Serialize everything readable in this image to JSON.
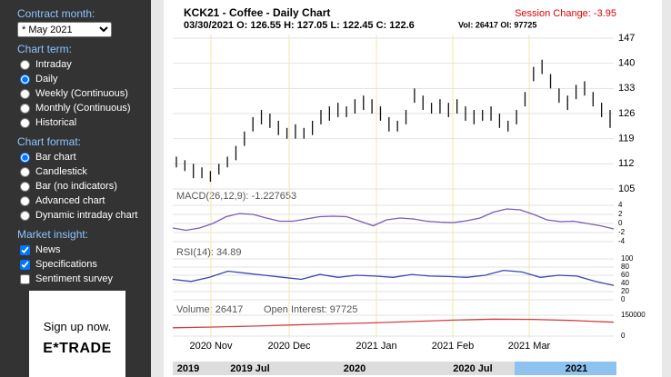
{
  "sidebar": {
    "contract_label": "Contract month:",
    "contract_value": "* May 2021",
    "term_label": "Chart term:",
    "terms": [
      {
        "label": "Intraday",
        "checked": false
      },
      {
        "label": "Daily",
        "checked": true
      },
      {
        "label": "Weekly (Continuous)",
        "checked": false
      },
      {
        "label": "Monthly (Continuous)",
        "checked": false
      },
      {
        "label": "Historical",
        "checked": false
      }
    ],
    "format_label": "Chart format:",
    "formats": [
      {
        "label": "Bar chart",
        "checked": true
      },
      {
        "label": "Candlestick",
        "checked": false
      },
      {
        "label": "Bar (no indicators)",
        "checked": false
      },
      {
        "label": "Advanced chart",
        "checked": false
      },
      {
        "label": "Dynamic intraday chart",
        "checked": false
      }
    ],
    "insight_label": "Market insight:",
    "insights": [
      {
        "label": "News",
        "checked": true
      },
      {
        "label": "Specifications",
        "checked": true
      },
      {
        "label": "Sentiment survey",
        "checked": false
      }
    ]
  },
  "ad": {
    "line1": "Sign up now.",
    "brand": "E*TRADE"
  },
  "chart_data": {
    "type": "ohlc",
    "title": "KCK21 - Coffee - Daily Chart",
    "session_change": "Session Change: -3.95",
    "quote": "03/30/2021 O: 126.55 H: 127.05 L: 122.45 C: 122.6",
    "quote_extra": "Vol: 26417 OI: 97725",
    "high": [
      114,
      113,
      112,
      111,
      110,
      112,
      114,
      117,
      121,
      125,
      127,
      126,
      124,
      122,
      123,
      122,
      124,
      127,
      128,
      129,
      128,
      130,
      131,
      130,
      128,
      125,
      124,
      127,
      133,
      131,
      129,
      130,
      129,
      130,
      128,
      127,
      127,
      128,
      126,
      124,
      127,
      132,
      139,
      141,
      137,
      133,
      131,
      134,
      135,
      132,
      129,
      127
    ],
    "low": [
      111,
      110,
      108,
      108,
      107,
      109,
      111,
      113,
      117,
      121,
      123,
      122,
      120,
      119,
      119,
      119,
      120,
      123,
      124,
      125,
      125,
      126,
      127,
      126,
      124,
      121,
      121,
      123,
      129,
      127,
      126,
      126,
      125,
      126,
      124,
      123,
      124,
      124,
      122,
      121,
      123,
      128,
      135,
      137,
      133,
      129,
      127,
      130,
      131,
      128,
      125,
      122
    ],
    "ylim": [
      105,
      147
    ],
    "yticks": [
      105,
      112,
      119,
      126,
      133,
      140,
      147
    ],
    "x_labels": [
      "2020 Nov",
      "2020 Dec",
      "2021 Jan",
      "2021 Feb",
      "2021 Mar"
    ],
    "macd": {
      "label": "MACD(26,12,9): -1.227653",
      "values": [
        -1,
        -1.5,
        -1,
        0,
        1.5,
        2.2,
        2,
        1.2,
        0.5,
        0.5,
        1,
        1.5,
        1.6,
        1.5,
        0.5,
        -0.5,
        0.8,
        1.2,
        1,
        0.5,
        0.3,
        0.2,
        0.6,
        1.2,
        2.5,
        3.2,
        3,
        2,
        0.8,
        0.4,
        0.5,
        0,
        -0.5,
        -1.2
      ],
      "ylim": [
        -4,
        4
      ],
      "yticks": [
        4,
        2,
        0,
        -2,
        -4
      ]
    },
    "rsi": {
      "label": "RSI(14): 34.89",
      "values": [
        50,
        45,
        55,
        70,
        65,
        60,
        55,
        50,
        62,
        55,
        60,
        58,
        55,
        62,
        58,
        57,
        55,
        60,
        72,
        68,
        55,
        60,
        58,
        45,
        35
      ],
      "ylim": [
        0,
        100
      ],
      "yticks": [
        100,
        80,
        60,
        40,
        20,
        0
      ]
    },
    "volume": {
      "label": "Volume: 26417",
      "oi_label": "Open Interest: 97725",
      "values": [
        60000,
        65000,
        72000,
        80000,
        88000,
        95000,
        105000,
        115000,
        122000,
        120000,
        112000,
        100000
      ],
      "ylim": [
        0,
        150000
      ],
      "yticks": [
        150000,
        0
      ]
    },
    "navigator": [
      "2019",
      "2019 Jul",
      "2020",
      "2020 Jul",
      "2021"
    ]
  }
}
